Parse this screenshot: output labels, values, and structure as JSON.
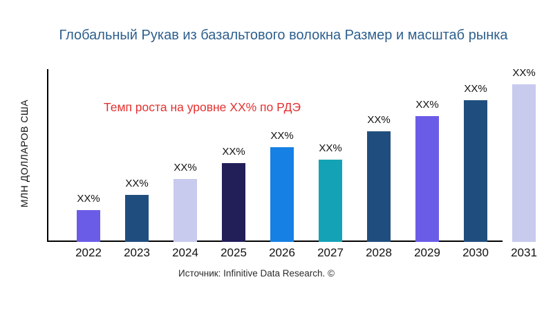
{
  "chart_data": {
    "type": "bar",
    "title": "Глобальный Рукав из базальтового волокна Размер и масштаб рынка",
    "ylabel": "МЛН ДОЛЛАРОВ США",
    "xlabel": "",
    "annotation": "Темп роста на уровне XX% по РДЭ",
    "source": "Источник: Infinitive Data Research. ©",
    "categories": [
      "2022",
      "2023",
      "2024",
      "2025",
      "2026",
      "2027",
      "2028",
      "2029",
      "2030",
      "2031"
    ],
    "bar_labels": [
      "XX%",
      "XX%",
      "XX%",
      "XX%",
      "XX%",
      "XX%",
      "XX%",
      "XX%",
      "XX%",
      "XX%"
    ],
    "relative_heights": [
      0.2,
      0.3,
      0.4,
      0.5,
      0.6,
      0.52,
      0.7,
      0.8,
      0.9,
      1.0
    ],
    "bar_colors": [
      "#6b5ce8",
      "#1f4e7e",
      "#c8caee",
      "#221e58",
      "#1680e4",
      "#14a3b6",
      "#1f4e7e",
      "#6b5ce8",
      "#1f4e7e",
      "#c8caee"
    ],
    "grid": false,
    "legend": false
  },
  "colors": {
    "title": "#2d5f8e",
    "annotation": "#e43030",
    "axis": "#000000",
    "text": "#111111",
    "background": "#ffffff"
  }
}
